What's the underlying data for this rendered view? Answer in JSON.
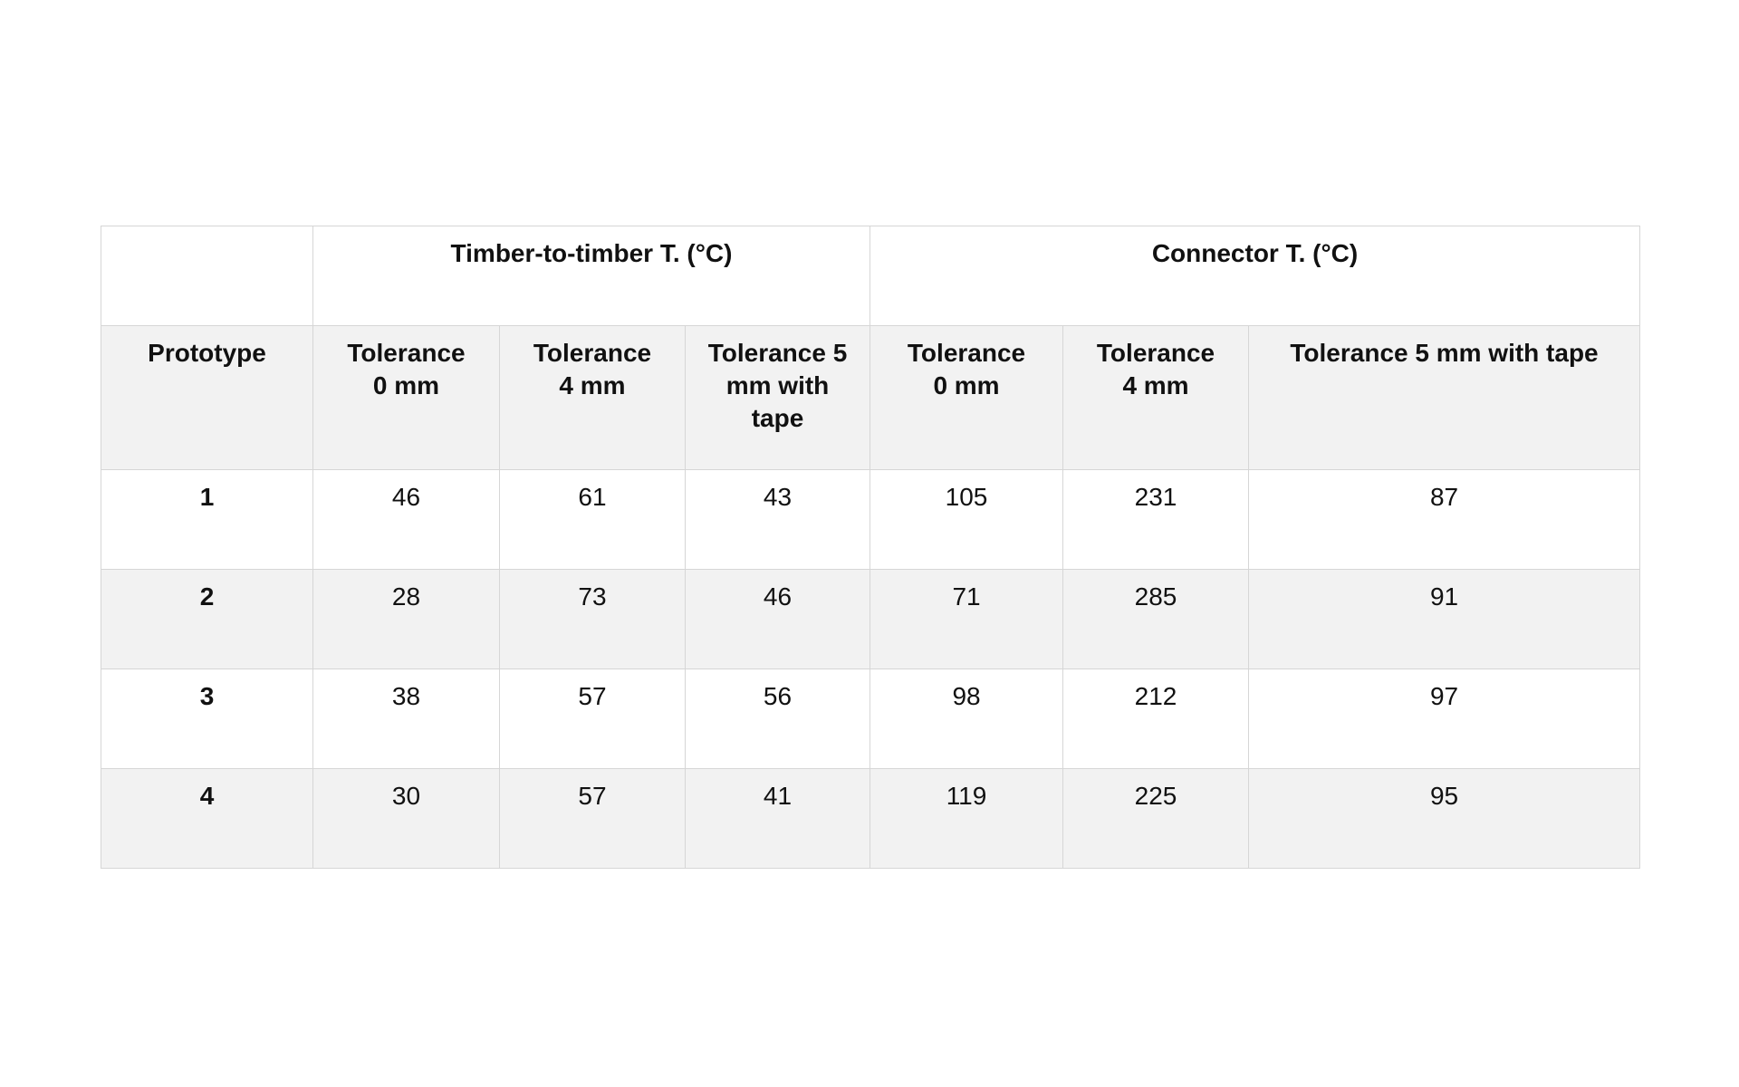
{
  "table": {
    "group_headers": [
      "",
      "Timber-to-timber T. (°C)",
      "Connector T. (°C)"
    ],
    "column_headers": [
      "Prototype",
      "Tolerance 0 mm",
      "Tolerance 4 mm",
      "Tolerance 5 mm with tape",
      "Tolerance 0 mm",
      "Tolerance 4 mm",
      "Tolerance 5 mm with tape"
    ],
    "rows": [
      [
        "1",
        "46",
        "61",
        "43",
        "105",
        "231",
        "87"
      ],
      [
        "2",
        "28",
        "73",
        "46",
        "71",
        "285",
        "91"
      ],
      [
        "3",
        "38",
        "57",
        "56",
        "98",
        "212",
        "97"
      ],
      [
        "4",
        "30",
        "57",
        "41",
        "119",
        "225",
        "95"
      ]
    ]
  },
  "colors": {
    "header_fill": "#f2f2f2",
    "alt_row_fill": "#f2f2f2",
    "border": "#d6d6d6"
  }
}
